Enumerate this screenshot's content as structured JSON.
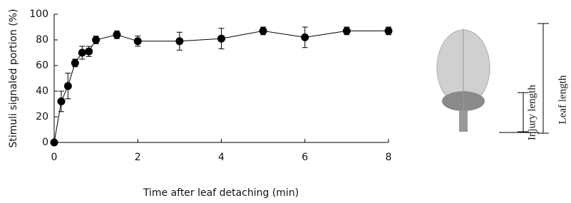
{
  "chart_data": {
    "type": "line",
    "ylabel": "Stimuli signaled portion (%)",
    "xlabel": "Time after leaf detaching (min)",
    "x": [
      0,
      0.17,
      0.33,
      0.5,
      0.67,
      0.83,
      1,
      1.5,
      2,
      3,
      4,
      5,
      6,
      7,
      8
    ],
    "values": [
      0,
      32,
      44,
      62,
      70,
      71,
      80,
      84,
      79,
      79,
      81,
      87,
      82,
      87,
      87
    ],
    "errors": [
      0,
      8,
      10,
      3,
      5,
      4,
      3,
      3,
      4,
      7,
      8,
      3,
      8,
      3,
      3
    ],
    "color": "#000000",
    "xlim": [
      0,
      8
    ],
    "xticks": [
      0,
      2,
      4,
      6,
      8
    ],
    "ylim": [
      0,
      100
    ],
    "yticks": [
      0,
      20,
      40,
      60,
      80,
      100
    ]
  },
  "diagram": {
    "injury_label": "Injury length",
    "leaf_label": "Leaf length"
  }
}
